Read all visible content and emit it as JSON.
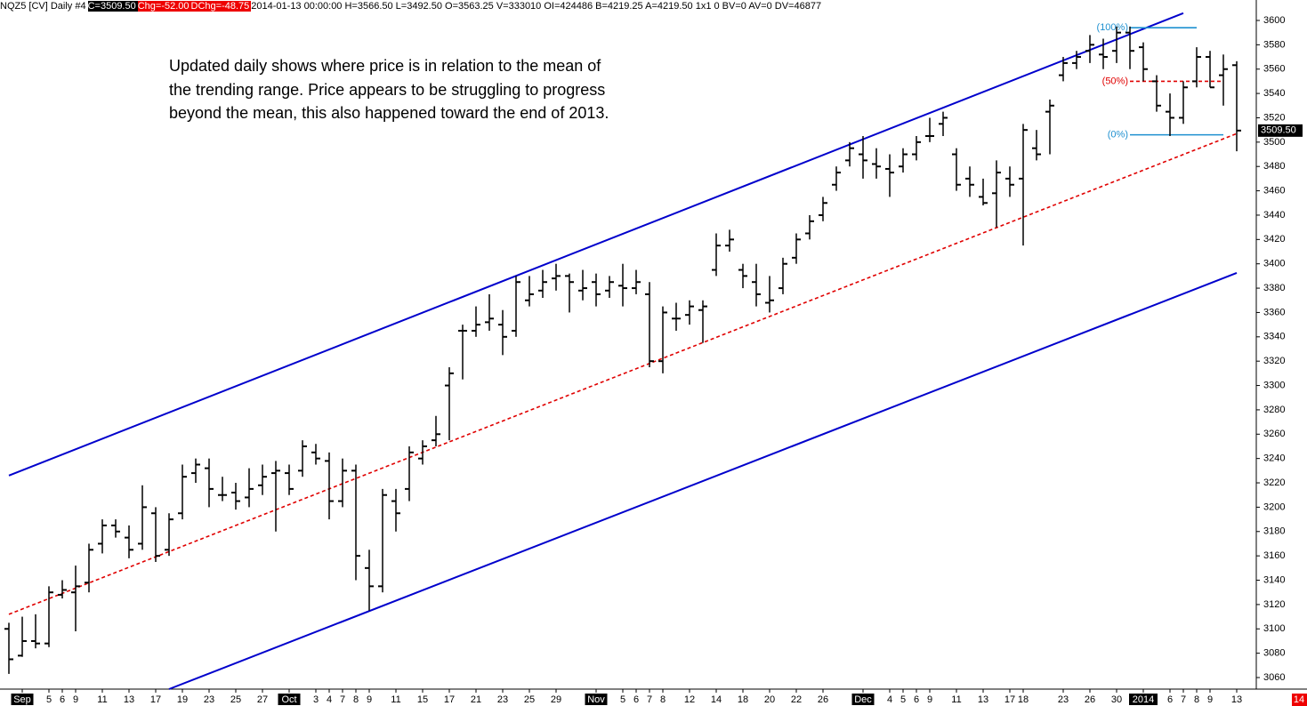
{
  "chart_data": {
    "type": "ohlc",
    "header": {
      "symbol": "NQZ5 [CV]  Daily  #4",
      "close": "C=3509.50",
      "change": "Chg=-52.00",
      "dchange": "DChg=-48.75",
      "info": "2014-01-13 00:00:00 H=3566.50 L=3492.50 O=3563.25 V=333010 OI=424486 B=4219.25 A=4219.50 1x1 0 BV=0 AV=0 DV=46877"
    },
    "annotation": [
      "Updated daily shows where price is in relation to the mean of",
      "the trending range.  Price appears to be struggling to progress",
      "beyond the mean, this also happened toward the end of 2013."
    ],
    "categories": [
      null,
      "Sep",
      null,
      "5",
      "6",
      "9",
      null,
      "11",
      null,
      "13",
      null,
      "17",
      null,
      "19",
      null,
      "23",
      null,
      "25",
      null,
      "27",
      null,
      "Oct",
      null,
      "3",
      "4",
      "7",
      "8",
      "9",
      null,
      "11",
      null,
      "15",
      null,
      "17",
      null,
      "21",
      null,
      "23",
      null,
      "25",
      null,
      "29",
      null,
      null,
      "Nov",
      null,
      "5",
      "6",
      "7",
      "8",
      null,
      "12",
      null,
      "14",
      null,
      "18",
      null,
      "20",
      null,
      "22",
      null,
      "26",
      null,
      null,
      "Dec",
      null,
      "4",
      "5",
      "6",
      "9",
      null,
      "11",
      null,
      "13",
      null,
      "17",
      "18",
      null,
      null,
      "23",
      null,
      "26",
      null,
      "30",
      null,
      "2014",
      null,
      "6",
      "7",
      "8",
      "9",
      null,
      "13"
    ],
    "open": [
      3100,
      3078,
      3090,
      3088,
      3128,
      3130,
      3138,
      3170,
      3185,
      3175,
      3170,
      3195,
      3165,
      3195,
      3228,
      3232,
      3210,
      3212,
      3208,
      3218,
      3228,
      3228,
      3230,
      3245,
      3238,
      3205,
      3230,
      3150,
      3135,
      3205,
      3215,
      3240,
      3255,
      3300,
      3345,
      3345,
      3352,
      3350,
      3345,
      3370,
      3378,
      3388,
      3390,
      3378,
      3385,
      3378,
      3382,
      3380,
      3375,
      3320,
      3355,
      3358,
      3362,
      3395,
      3415,
      3395,
      3385,
      3368,
      3380,
      3405,
      3425,
      3440,
      3465,
      3485,
      3490,
      3482,
      3478,
      3480,
      3490,
      3505,
      3515,
      3490,
      3470,
      3455,
      3458,
      3470,
      3470,
      3495,
      3525,
      3555,
      3565,
      3575,
      3572,
      3575,
      3590,
      3578,
      3550,
      3525,
      3520,
      3550,
      3570,
      3555,
      3563.25
    ],
    "high": [
      3105,
      3110,
      3112,
      3135,
      3140,
      3152,
      3170,
      3190,
      3190,
      3185,
      3218,
      3200,
      3195,
      3235,
      3240,
      3240,
      3225,
      3220,
      3232,
      3235,
      3238,
      3235,
      3255,
      3252,
      3245,
      3240,
      3235,
      3165,
      3215,
      3215,
      3250,
      3255,
      3275,
      3315,
      3350,
      3365,
      3375,
      3362,
      3390,
      3390,
      3395,
      3400,
      3392,
      3395,
      3392,
      3390,
      3400,
      3395,
      3385,
      3365,
      3368,
      3370,
      3370,
      3425,
      3428,
      3400,
      3400,
      3390,
      3405,
      3425,
      3440,
      3455,
      3480,
      3500,
      3505,
      3495,
      3490,
      3495,
      3505,
      3520,
      3525,
      3495,
      3480,
      3470,
      3485,
      3480,
      3515,
      3510,
      3535,
      3570,
      3575,
      3588,
      3585,
      3595,
      3595,
      3582,
      3555,
      3540,
      3550,
      3578,
      3575,
      3572,
      3566.5
    ],
    "low": [
      3063,
      3077,
      3084,
      3085,
      3125,
      3098,
      3130,
      3162,
      3175,
      3158,
      3165,
      3155,
      3160,
      3190,
      3220,
      3200,
      3205,
      3198,
      3200,
      3210,
      3180,
      3210,
      3225,
      3235,
      3190,
      3200,
      3140,
      3115,
      3130,
      3180,
      3205,
      3235,
      3250,
      3255,
      3305,
      3340,
      3345,
      3325,
      3340,
      3365,
      3372,
      3378,
      3360,
      3370,
      3365,
      3372,
      3365,
      3375,
      3315,
      3310,
      3345,
      3350,
      3335,
      3390,
      3410,
      3380,
      3365,
      3360,
      3375,
      3400,
      3420,
      3435,
      3460,
      3480,
      3470,
      3470,
      3455,
      3475,
      3485,
      3500,
      3505,
      3460,
      3455,
      3448,
      3430,
      3455,
      3415,
      3485,
      3490,
      3550,
      3560,
      3565,
      3560,
      3565,
      3560,
      3550,
      3525,
      3505,
      3515,
      3545,
      3545,
      3530,
      3492.5
    ],
    "close": [
      3075,
      3090,
      3088,
      3130,
      3132,
      3135,
      3165,
      3185,
      3180,
      3165,
      3200,
      3160,
      3190,
      3225,
      3235,
      3215,
      3210,
      3205,
      3215,
      3225,
      3230,
      3215,
      3250,
      3240,
      3205,
      3230,
      3160,
      3135,
      3210,
      3195,
      3245,
      3250,
      3260,
      3310,
      3345,
      3350,
      3355,
      3340,
      3385,
      3375,
      3385,
      3390,
      3385,
      3380,
      3375,
      3385,
      3380,
      3385,
      3320,
      3360,
      3355,
      3365,
      3365,
      3415,
      3420,
      3390,
      3375,
      3370,
      3400,
      3420,
      3435,
      3450,
      3475,
      3495,
      3485,
      3480,
      3475,
      3490,
      3500,
      3505,
      3520,
      3465,
      3465,
      3450,
      3475,
      3465,
      3510,
      3490,
      3530,
      3565,
      3570,
      3580,
      3570,
      3590,
      3575,
      3560,
      3530,
      3520,
      3545,
      3570,
      3545,
      3560,
      3509.5
    ],
    "bar_color": "#000000",
    "last_price": {
      "value": 3509.5,
      "label": "3509.50"
    },
    "corner_label": "14",
    "ylim": [
      3050.5,
      3616.8
    ],
    "yticks": [
      3060,
      3080,
      3100,
      3120,
      3140,
      3160,
      3180,
      3200,
      3220,
      3240,
      3260,
      3280,
      3300,
      3320,
      3340,
      3360,
      3380,
      3400,
      3420,
      3440,
      3460,
      3480,
      3500,
      3520,
      3540,
      3560,
      3580,
      3600
    ],
    "trendlines": [
      {
        "color": "#0000cc",
        "dashed": false,
        "x": [
          0,
          88
        ],
        "y": [
          3226,
          3606
        ]
      },
      {
        "color": "#0000cc",
        "dashed": false,
        "x": [
          12,
          92
        ],
        "y": [
          3050.5,
          3392.5
        ]
      },
      {
        "color": "#e00000",
        "dashed": true,
        "x": [
          0,
          92
        ],
        "y": [
          3112,
          3507
        ]
      }
    ],
    "levels": [
      {
        "label": "(100%)",
        "color": "#1e90d0",
        "dashed": false,
        "value": 3594,
        "x": [
          84,
          89
        ]
      },
      {
        "label": "(50%)",
        "color": "#e00000",
        "dashed": true,
        "value": 3550,
        "x": [
          84,
          91
        ]
      },
      {
        "label": "(0%)",
        "color": "#1e90d0",
        "dashed": false,
        "value": 3506,
        "x": [
          84,
          91
        ]
      }
    ]
  }
}
